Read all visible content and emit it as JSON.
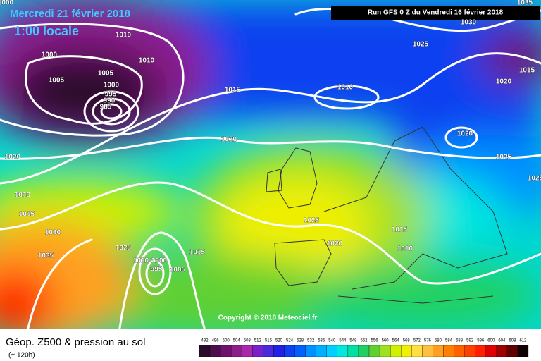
{
  "header": {
    "date": "Mercredi 21 février 2018",
    "time": "1:00 locale",
    "run": "Run GFS 0 Z du Vendredi 16 février 2018"
  },
  "copyright": "Copyright © 2018 Meteociel.fr",
  "isobar_labels": [
    1000,
    1010,
    1000,
    1010,
    1005,
    1005,
    1000,
    995,
    990,
    985,
    1015,
    1010,
    1025,
    1030,
    1035,
    1015,
    1020,
    1020,
    1020,
    1025,
    1020,
    1010,
    1015,
    1030,
    1035,
    1025,
    1010,
    1000,
    995,
    1005,
    1015,
    1025,
    1020,
    1015,
    1010,
    1025
  ],
  "legend": {
    "title": "Géop. Z500 & pression au sol",
    "subtitle": "(+ 120h)",
    "ticks": [
      492,
      496,
      500,
      504,
      508,
      512,
      516,
      520,
      524,
      528,
      532,
      536,
      540,
      544,
      548,
      552,
      556,
      560,
      564,
      568,
      572,
      576,
      580,
      584,
      588,
      592,
      596,
      600,
      604,
      608,
      612
    ],
    "colors": [
      "#2a0a2a",
      "#4b0f4b",
      "#6e146e",
      "#8c1e8c",
      "#aa28aa",
      "#7a20c8",
      "#4a28dc",
      "#2020e6",
      "#1040f0",
      "#0060ff",
      "#0090ff",
      "#00b0ff",
      "#00d0ff",
      "#00e8e0",
      "#00e0a0",
      "#20d060",
      "#60d030",
      "#a0e020",
      "#d0f000",
      "#f0f000",
      "#ffe040",
      "#ffc040",
      "#ffa020",
      "#ff8000",
      "#ff6000",
      "#ff4000",
      "#ff2000",
      "#e00000",
      "#a00000",
      "#600000",
      "#100000"
    ]
  }
}
